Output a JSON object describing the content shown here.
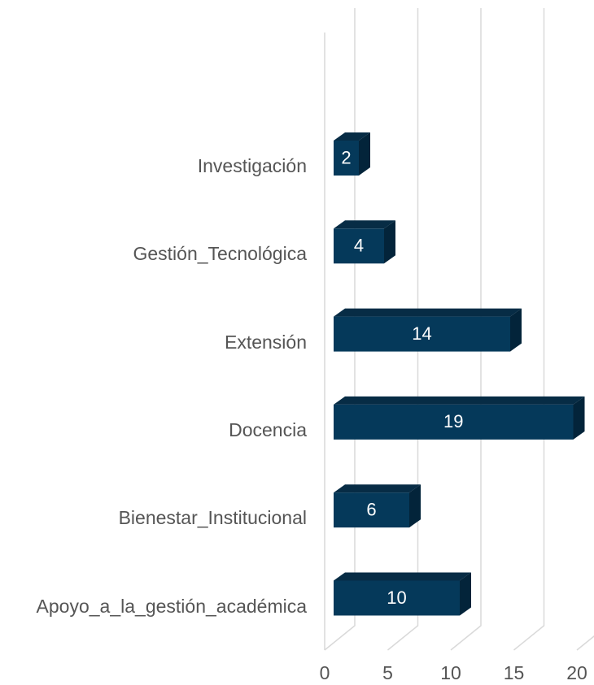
{
  "chart_data": {
    "type": "bar3d_horizontal",
    "categories": [
      "Investigación",
      "Gestión_Tecnológica",
      "Extensión",
      "Docencia",
      "Bienestar_Institucional",
      "Apoyo_a_la_gestión_académica"
    ],
    "values": [
      2,
      4,
      14,
      19,
      6,
      10
    ],
    "color": "#05395a",
    "xlim": [
      0,
      20
    ],
    "xticks": [
      0,
      5,
      10,
      15,
      20
    ],
    "grid": true
  }
}
